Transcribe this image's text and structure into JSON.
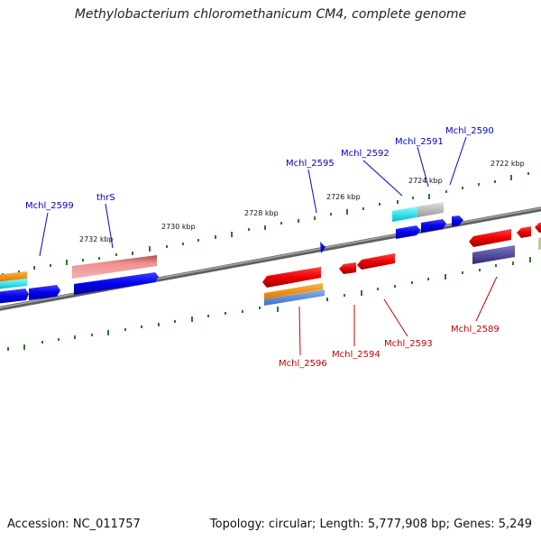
{
  "title": "Methylobacterium chloromethanicum CM4, complete genome",
  "footer": {
    "accession": "Accession: NC_011757",
    "summary": "Topology: circular; Length: 5,777,908 bp; Genes: 5,249"
  },
  "scale_labels": [
    "2722 kbp",
    "2724 kbp",
    "2726 kbp",
    "2728 kbp",
    "2730 kbp",
    "2732 kbp"
  ],
  "genes_top": [
    {
      "label": "Mchl_2599",
      "color": "#0000cc"
    },
    {
      "label": "thrS",
      "color": "#0000cc"
    },
    {
      "label": "Mchl_2595",
      "color": "#0000cc"
    },
    {
      "label": "Mchl_2592",
      "color": "#0000cc"
    },
    {
      "label": "Mchl_2591",
      "color": "#0000cc"
    },
    {
      "label": "Mchl_2590",
      "color": "#0000cc"
    }
  ],
  "genes_bottom": [
    {
      "label": "Mchl_2596",
      "color": "#cc0000"
    },
    {
      "label": "Mchl_2594",
      "color": "#cc0000"
    },
    {
      "label": "Mchl_2593",
      "color": "#cc0000"
    },
    {
      "label": "Mchl_2589",
      "color": "#cc0000"
    }
  ],
  "colors": {
    "forward_gene": "#0000ee",
    "reverse_gene": "#ee0000",
    "backbone": "#808080",
    "tick": "#2a7a2a",
    "orange": "#ff9900",
    "steelblue": "#5a8ad0",
    "salmon": "#e88080",
    "cyan": "#00e5ee",
    "gray": "#b8b8b8",
    "navy": "#3d3a8a"
  }
}
